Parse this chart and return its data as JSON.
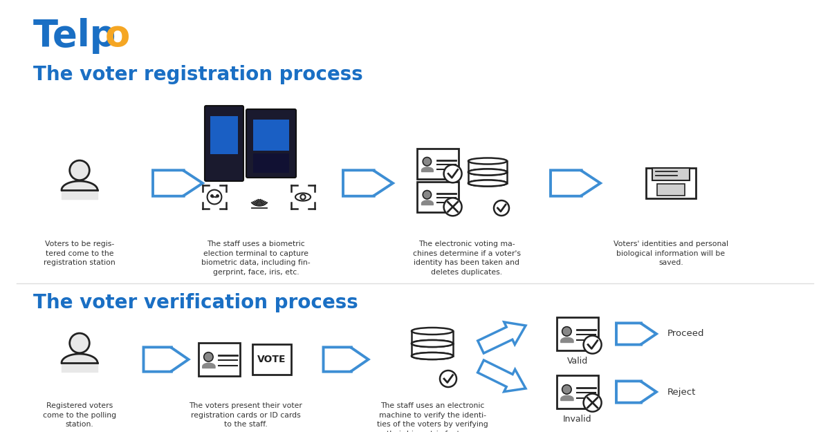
{
  "bg_color": "#ffffff",
  "blue": "#1a6fc4",
  "orange": "#F5A623",
  "arrow_color": "#3d8ed4",
  "icon_color": "#222222",
  "text_color": "#333333",
  "section1_title": "The voter registration process",
  "section2_title": "The voter verification process",
  "s1_labels": [
    "Voters to be regis-\ntered come to the\nregistration station",
    "The staff uses a biometric\nelection terminal to capture\nbiometric data, including fin-\ngerprint, face, iris, etc.",
    "The electronic voting ma-\nchines determine if a voter's\nidentity has been taken and\ndeletes duplicates.",
    "Voters' identities and personal\nbiological information will be\nsaved."
  ],
  "s2_labels": [
    "Registered voters\ncome to the polling\nstation.",
    "The voters present their voter\nregistration cards or ID cards\nto the staff.",
    "The staff uses an electronic\nmachine to verify the identi-\nties of the voters by verifying\ntheir biometric features."
  ],
  "valid_label": "Valid",
  "invalid_label": "Invalid",
  "proceed_label": "Proceed",
  "reject_label": "Reject"
}
